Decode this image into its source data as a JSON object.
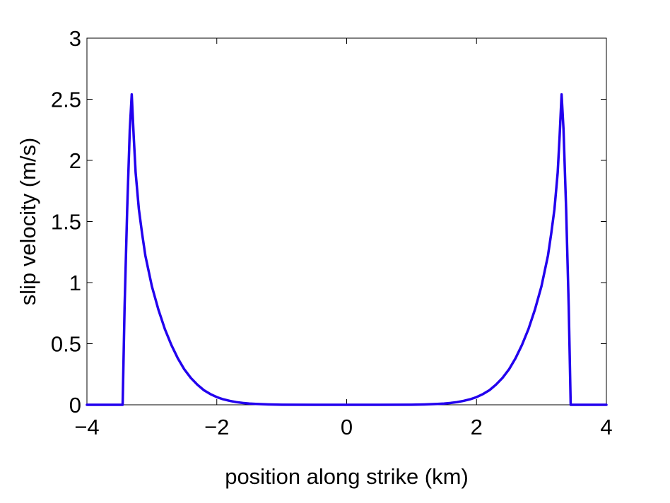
{
  "chart_data": {
    "type": "line",
    "title": "",
    "xlabel": "position along strike (km)",
    "ylabel": "slip velocity (m/s)",
    "xlim": [
      -4,
      4
    ],
    "ylim": [
      0,
      3
    ],
    "x_ticks": [
      -4,
      -2,
      0,
      2,
      4
    ],
    "x_tick_labels": [
      "−4",
      "−2",
      "0",
      "2",
      "4"
    ],
    "y_ticks": [
      0,
      0.5,
      1,
      1.5,
      2,
      2.5,
      3
    ],
    "y_tick_labels": [
      "0",
      "0.5",
      "1",
      "1.5",
      "2",
      "2.5",
      "3"
    ],
    "grid": false,
    "legend": "none",
    "colors": {
      "line": "#2200ee",
      "axes": "#000000",
      "background": "#ffffff"
    },
    "series": [
      {
        "x": [
          -4.0,
          -3.5,
          -3.45,
          -3.42,
          -3.38,
          -3.34,
          -3.31,
          -3.28,
          -3.25,
          -3.2,
          -3.15,
          -3.1,
          -3.0,
          -2.9,
          -2.8,
          -2.7,
          -2.6,
          -2.5,
          -2.4,
          -2.3,
          -2.2,
          -2.1,
          -2.0,
          -1.9,
          -1.8,
          -1.7,
          -1.6,
          -1.5,
          -1.4,
          -1.2,
          -1.0,
          -0.5,
          0.0,
          0.5,
          1.0,
          1.2,
          1.4,
          1.5,
          1.6,
          1.7,
          1.8,
          1.9,
          2.0,
          2.1,
          2.2,
          2.3,
          2.4,
          2.5,
          2.6,
          2.7,
          2.8,
          2.9,
          3.0,
          3.1,
          3.15,
          3.2,
          3.25,
          3.28,
          3.31,
          3.34,
          3.38,
          3.42,
          3.45,
          3.5,
          4.0
        ],
        "y": [
          0,
          0,
          0,
          0.8,
          1.6,
          2.25,
          2.54,
          2.2,
          1.9,
          1.6,
          1.4,
          1.22,
          0.97,
          0.78,
          0.62,
          0.49,
          0.38,
          0.29,
          0.22,
          0.165,
          0.12,
          0.088,
          0.063,
          0.045,
          0.032,
          0.022,
          0.015,
          0.01,
          0.007,
          0.003,
          0.001,
          0,
          0,
          0,
          0.001,
          0.003,
          0.007,
          0.01,
          0.015,
          0.022,
          0.032,
          0.045,
          0.063,
          0.088,
          0.12,
          0.165,
          0.22,
          0.29,
          0.38,
          0.49,
          0.62,
          0.78,
          0.97,
          1.22,
          1.4,
          1.6,
          1.9,
          2.2,
          2.54,
          2.25,
          1.6,
          0.8,
          0,
          0,
          0
        ]
      }
    ]
  }
}
